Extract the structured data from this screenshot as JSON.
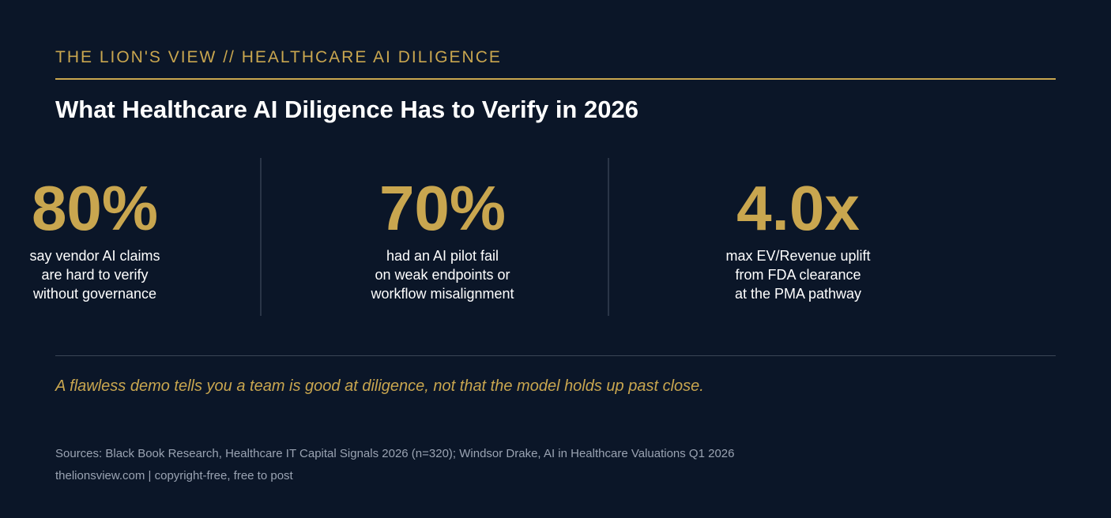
{
  "header": {
    "kicker": "THE LION'S VIEW // HEALTHCARE AI DILIGENCE",
    "title": "What Healthcare AI Diligence Has to Verify in 2026"
  },
  "stats": [
    {
      "value": "80%",
      "lines": [
        "say vendor AI claims",
        "are hard to verify",
        "without governance"
      ]
    },
    {
      "value": "70%",
      "lines": [
        "had an AI pilot fail",
        "on weak endpoints or",
        "workflow misalignment"
      ]
    },
    {
      "value": "4.0x",
      "lines": [
        "max EV/Revenue uplift",
        "from FDA clearance",
        "at the PMA pathway"
      ]
    }
  ],
  "quote": "A flawless demo tells you a team is good at diligence, not that the model holds up past close.",
  "footer": {
    "sources": "Sources: Black Book Research, Healthcare IT Capital Signals 2026 (n=320); Windsor Drake, AI in Healthcare Valuations Q1 2026",
    "credit": "thelionsview.com | copyright-free, free to post"
  },
  "colors": {
    "background": "#0b1628",
    "accent": "#c9a64f",
    "text": "#ffffff",
    "muted": "#9aa3b2"
  }
}
